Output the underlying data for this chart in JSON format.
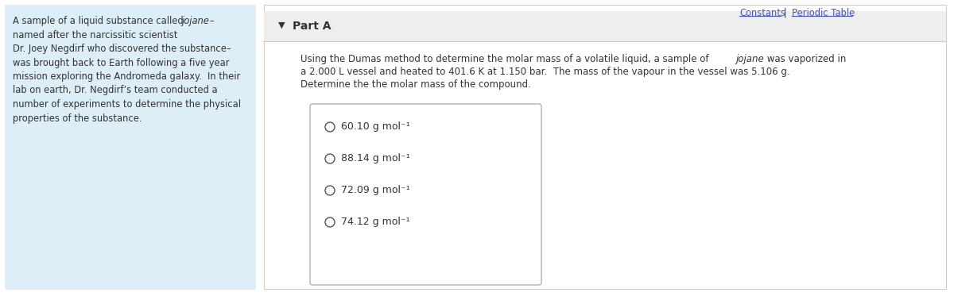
{
  "bg_color": "#ffffff",
  "left_panel_bg": "#ddeef6",
  "top_right_constants": "Constants",
  "top_right_sep": " | ",
  "top_right_periodic": "Periodic Table",
  "part_a_label": "Part A",
  "part_a_arrow": "▼",
  "left_lines": [
    [
      "A sample of a liquid substance called ",
      "jojane",
      "–"
    ],
    [
      "named after the narcissitic scientist",
      "",
      ""
    ],
    [
      "Dr. Joey Negdirf who discovered the substance–",
      "",
      ""
    ],
    [
      "was brought back to Earth following a five year",
      "",
      ""
    ],
    [
      "mission exploring the Andromeda galaxy.  In their",
      "",
      ""
    ],
    [
      "lab on earth, Dr. Negdirf’s team conducted a",
      "",
      ""
    ],
    [
      "number of experiments to determine the physical",
      "",
      ""
    ],
    [
      "properties of the substance.",
      "",
      ""
    ]
  ],
  "question_pre": "Using the Dumas method to determine the molar mass of a volatile liquid, a sample of ",
  "question_italic": "jojane",
  "question_post": " was vaporized in",
  "question_line2": "a 2.000 L vessel and heated to 401.6 K at 1.150 bar.  The mass of the vapour in the vessel was 5.106 g.",
  "question_line3": "Determine the the molar mass of the compound.",
  "options": [
    "60.10 g mol⁻¹",
    "88.14 g mol⁻¹",
    "72.09 g mol⁻¹",
    "74.12 g mol⁻¹"
  ],
  "link_color": "#4455bb",
  "text_color": "#333333",
  "panel_border_color": "#cccccc",
  "part_a_bg": "#eeeeee",
  "opts_border_color": "#aaaaaa"
}
